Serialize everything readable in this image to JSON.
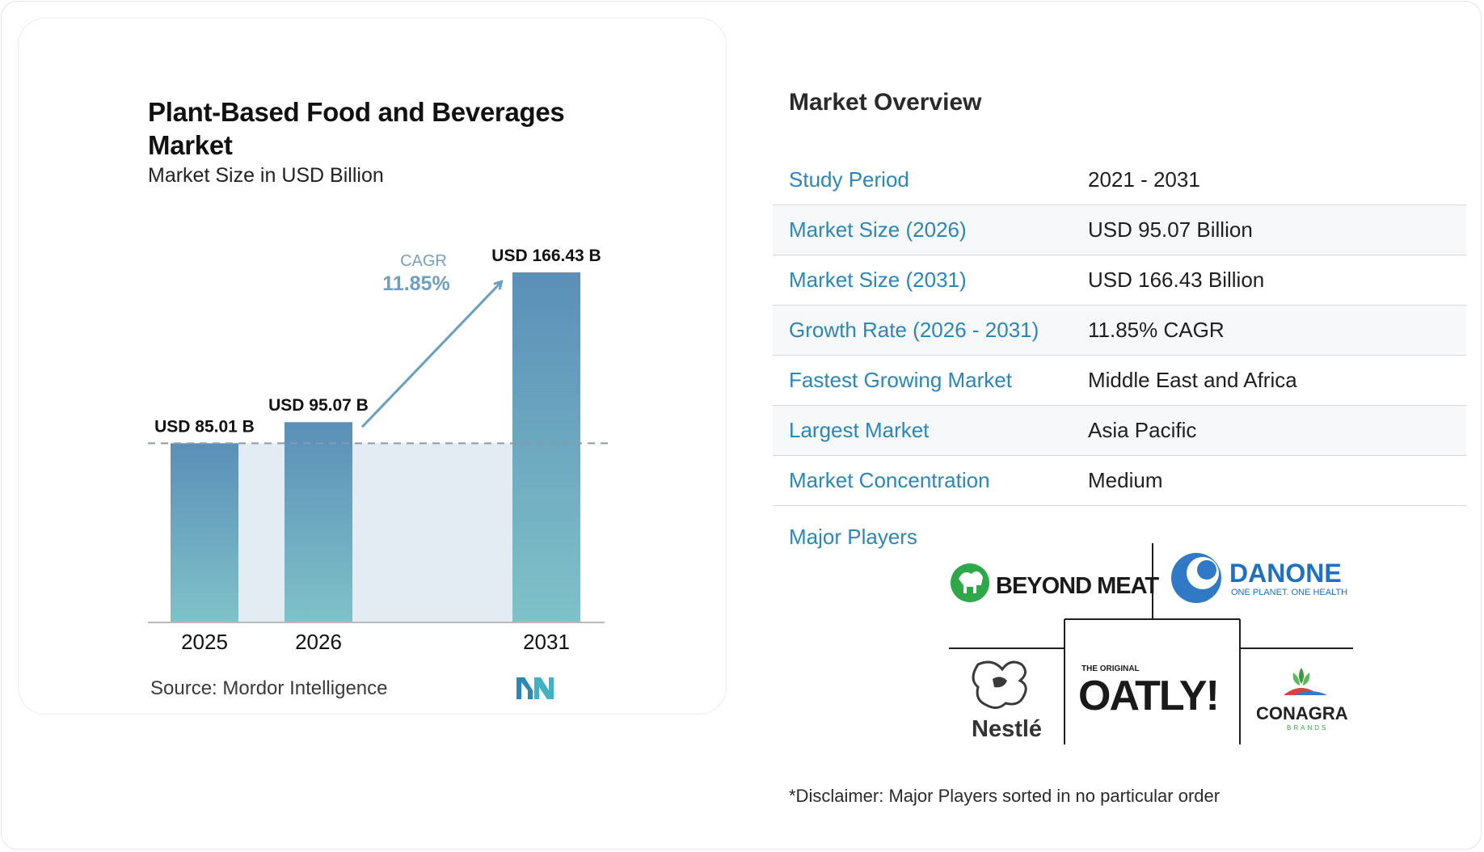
{
  "chart_data": {
    "type": "bar",
    "title": "Plant-Based Food and Beverages Market",
    "subtitle": "Market Size in USD Billion",
    "categories": [
      "2025",
      "2026",
      "2031"
    ],
    "values": [
      85.01,
      95.07,
      166.43
    ],
    "data_labels": [
      "USD 85.01 B",
      "USD 95.07 B",
      "USD 166.43 B"
    ],
    "cagr_label": "CAGR",
    "cagr_value": "11.85%",
    "ylim": [
      0,
      166.43
    ],
    "grid": false,
    "colors": {
      "bar_top": "#5b8fb8",
      "bar_bottom": "#7fc2c8",
      "band": "#e3ebf3",
      "arrow": "#6a9ec0",
      "dash": "#8a9aa8"
    }
  },
  "source": "Source:  Mordor Intelligence",
  "overview": {
    "title": "Market Overview",
    "rows": [
      {
        "key": "Study Period",
        "value": "2021 - 2031"
      },
      {
        "key": "Market Size (2026)",
        "value": "USD 95.07 Billion"
      },
      {
        "key": "Market Size (2031)",
        "value": "USD 166.43 Billion"
      },
      {
        "key": "Growth Rate (2026 - 2031)",
        "value": "11.85% CAGR"
      },
      {
        "key": "Fastest Growing Market",
        "value": "Middle East and Africa"
      },
      {
        "key": "Largest Market",
        "value": "Asia Pacific"
      },
      {
        "key": "Market Concentration",
        "value": "Medium"
      }
    ]
  },
  "players": {
    "label": "Major Players",
    "logos": [
      {
        "name": "BEYOND MEAT",
        "icon": "beyond-meat-logo"
      },
      {
        "name": "DANONE",
        "tagline": "ONE PLANET. ONE HEALTH",
        "icon": "danone-logo"
      },
      {
        "name": "Nestlé",
        "icon": "nestle-logo"
      },
      {
        "name": "OATLY!",
        "tagline": "THE ORIGINAL",
        "icon": "oatly-logo"
      },
      {
        "name": "CONAGRA",
        "tagline": "BRANDS",
        "icon": "conagra-logo"
      }
    ]
  },
  "disclaimer": "*Disclaimer: Major Players sorted in no particular order"
}
